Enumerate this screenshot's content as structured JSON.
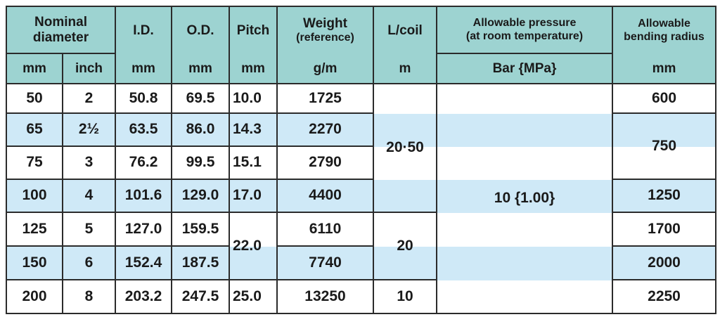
{
  "header": {
    "nominal": [
      "Nominal",
      "diameter"
    ],
    "id": "I.D.",
    "od": "O.D.",
    "pitch": "Pitch",
    "weight": [
      "Weight",
      "(reference)"
    ],
    "coil": "L/coil",
    "pressure": [
      "Allowable pressure",
      "(at room temperature)"
    ],
    "bending": [
      "Allowable",
      "bending radius"
    ]
  },
  "units": [
    "mm",
    "inch",
    "mm",
    "mm",
    "mm",
    "g/m",
    "m",
    "Bar {MPa}",
    "mm"
  ],
  "table": {
    "mm": [
      "50",
      "65",
      "75",
      "100",
      "125",
      "150",
      "200"
    ],
    "inch": [
      "2",
      "2½",
      "3",
      "4",
      "5",
      "6",
      "8"
    ],
    "id": [
      "50.8",
      "63.5",
      "76.2",
      "101.6",
      "127.0",
      "152.4",
      "203.2"
    ],
    "od": [
      "69.5",
      "86.0",
      "99.5",
      "129.0",
      "159.5",
      "187.5",
      "247.5"
    ],
    "pitch": [
      "10.0",
      "14.3",
      "15.1",
      "17.0",
      "22.0",
      "25.0"
    ],
    "weight": [
      "1725",
      "2270",
      "2790",
      "4400",
      "6110",
      "7740",
      "13250"
    ],
    "coil": [
      "20·50",
      "20",
      "10"
    ],
    "pressure": [
      "10 {1.00}"
    ],
    "bending": [
      "600",
      "750",
      "1250",
      "1700",
      "2000",
      "2250"
    ]
  }
}
